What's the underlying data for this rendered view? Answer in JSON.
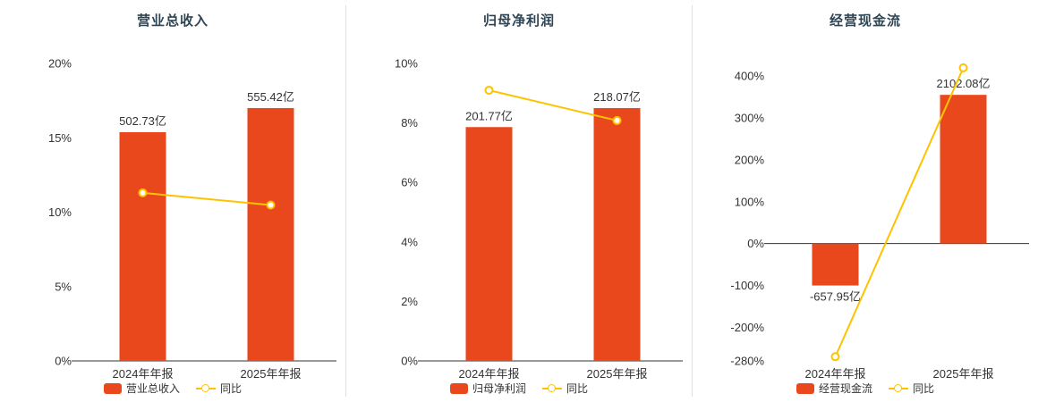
{
  "colors": {
    "bar": "#e8481c",
    "line": "#fdc300",
    "title": "#2f4554",
    "text": "#333333",
    "axis": "#333333",
    "divider": "#e0e0e0"
  },
  "chart_data": [
    {
      "type": "bar",
      "title": "营业总收入",
      "categories": [
        "2024年年报",
        "2025年年报"
      ],
      "unit": "亿",
      "ylim": [
        0,
        20
      ],
      "ytick_values": [
        0,
        5,
        10,
        15,
        20
      ],
      "ytick_labels": [
        "0%",
        "5%",
        "10%",
        "15%",
        "20%"
      ],
      "legend_position": "bottom",
      "grid": false,
      "series": [
        {
          "name": "营业总收入",
          "kind": "bar",
          "amounts": [
            502.73,
            555.42
          ],
          "labels": [
            "502.73亿",
            "555.42亿"
          ],
          "plot_values": [
            15.38,
            17.0
          ]
        },
        {
          "name": "同比",
          "kind": "line",
          "values": [
            11.3,
            10.48
          ]
        }
      ]
    },
    {
      "type": "bar",
      "title": "归母净利润",
      "categories": [
        "2024年年报",
        "2025年年报"
      ],
      "unit": "亿",
      "ylim": [
        0,
        10
      ],
      "ytick_values": [
        0,
        2,
        4,
        6,
        8,
        10
      ],
      "ytick_labels": [
        "0%",
        "2%",
        "4%",
        "6%",
        "8%",
        "10%"
      ],
      "legend_position": "bottom",
      "grid": false,
      "series": [
        {
          "name": "归母净利润",
          "kind": "bar",
          "amounts": [
            201.77,
            218.07
          ],
          "labels": [
            "201.77亿",
            "218.07亿"
          ],
          "plot_values": [
            7.86,
            8.5
          ]
        },
        {
          "name": "同比",
          "kind": "line",
          "values": [
            9.1,
            8.08
          ]
        }
      ]
    },
    {
      "type": "bar",
      "title": "经营现金流",
      "categories": [
        "2024年年报",
        "2025年年报"
      ],
      "unit": "亿",
      "ylim": [
        -280,
        430
      ],
      "ytick_values": [
        -280,
        -200,
        -100,
        0,
        100,
        200,
        300,
        400
      ],
      "ytick_labels": [
        "-280%",
        "-200%",
        "-100%",
        "0%",
        "100%",
        "200%",
        "300%",
        "400%"
      ],
      "legend_position": "bottom",
      "grid": false,
      "series": [
        {
          "name": "经营现金流",
          "kind": "bar",
          "amounts": [
            -657.95,
            2102.08
          ],
          "labels": [
            "-657.95亿",
            "2102.08亿"
          ],
          "plot_values": [
            -100,
            355
          ]
        },
        {
          "name": "同比",
          "kind": "line",
          "values": [
            -270,
            419.5
          ]
        }
      ]
    }
  ]
}
